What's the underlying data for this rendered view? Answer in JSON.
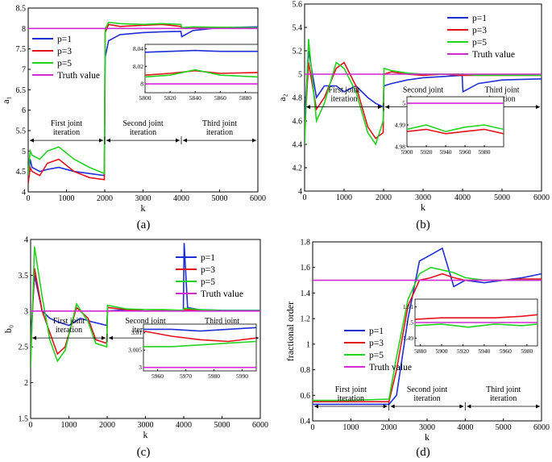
{
  "colors": {
    "p1": "#1f2fd6",
    "p3": "#e3121a",
    "p5": "#20d41f",
    "truth": "#d22ad2",
    "axis": "#000000"
  },
  "chart_data": [
    {
      "type": "line",
      "panel_label": "(a)",
      "xlabel": "k",
      "ylabel": "a₁",
      "xlim": [
        0,
        6000
      ],
      "ylim": [
        4,
        8.5
      ],
      "xticks": [
        "0",
        "1000",
        "2000",
        "3000",
        "4000",
        "5000",
        "6000"
      ],
      "yticks": [
        "4",
        "4.5",
        "5",
        "5.5",
        "6",
        "6.5",
        "7",
        "7.5",
        "8",
        "8.5"
      ],
      "legend": {
        "position": "upper-left",
        "entries": [
          "p=1",
          "p=3",
          "p=5",
          "Truth value"
        ]
      },
      "truth": 8,
      "series": [
        {
          "name": "p=1",
          "x": [
            0,
            50,
            100,
            300,
            500,
            800,
            1200,
            1600,
            1990,
            2010,
            2100,
            2400,
            3000,
            3500,
            3990,
            4010,
            4300,
            5000,
            6000
          ],
          "y": [
            4.3,
            4.8,
            4.6,
            4.5,
            4.55,
            4.6,
            4.5,
            4.45,
            4.4,
            7.3,
            7.7,
            7.85,
            7.9,
            7.92,
            7.93,
            7.8,
            7.95,
            8.02,
            8.04
          ]
        },
        {
          "name": "p=3",
          "x": [
            0,
            50,
            100,
            300,
            500,
            800,
            1200,
            1600,
            1990,
            2010,
            2100,
            2400,
            3000,
            3500,
            3990,
            4010,
            4300,
            5000,
            6000
          ],
          "y": [
            4.2,
            4.6,
            4.5,
            4.4,
            4.7,
            4.8,
            4.5,
            4.35,
            4.3,
            7.9,
            8.1,
            8.05,
            8.08,
            8.1,
            8.05,
            8.0,
            8.03,
            8.02,
            8.02
          ]
        },
        {
          "name": "p=5",
          "x": [
            0,
            50,
            100,
            300,
            500,
            800,
            1200,
            1600,
            1990,
            2010,
            2100,
            2400,
            3000,
            3500,
            3990,
            4010,
            4300,
            5000,
            6000
          ],
          "y": [
            4.4,
            5.0,
            4.9,
            4.8,
            5.0,
            5.1,
            4.8,
            4.6,
            4.45,
            8.0,
            8.15,
            8.12,
            8.1,
            8.12,
            8.1,
            8.02,
            8.04,
            8.03,
            8.02
          ]
        }
      ],
      "phases": [
        {
          "label": "First joint iteration",
          "range": [
            0,
            2000
          ]
        },
        {
          "label": "Second joint iteration",
          "range": [
            2000,
            4000
          ]
        },
        {
          "label": "Third joint iteration",
          "range": [
            4000,
            6000
          ]
        }
      ],
      "inset": {
        "xlim": [
          5800,
          5890
        ],
        "ylim": [
          7.99,
          8.045
        ],
        "xticks": [
          "5800",
          "5820",
          "5840",
          "5860",
          "5880"
        ],
        "yticks": [
          "8",
          "8.02",
          "8.04"
        ],
        "series": [
          {
            "name": "p=1",
            "x": [
              5800,
              5820,
              5840,
              5860,
              5890
            ],
            "y": [
              8.036,
              8.037,
              8.038,
              8.037,
              8.037
            ]
          },
          {
            "name": "p=3",
            "x": [
              5800,
              5820,
              5840,
              5860,
              5890
            ],
            "y": [
              8.01,
              8.012,
              8.015,
              8.012,
              8.013
            ]
          },
          {
            "name": "p=5",
            "x": [
              5800,
              5820,
              5840,
              5860,
              5890
            ],
            "y": [
              8.008,
              8.01,
              8.016,
              8.01,
              8.008
            ]
          }
        ],
        "truth": 8
      }
    },
    {
      "type": "line",
      "panel_label": "(b)",
      "xlabel": "k",
      "ylabel": "a₂",
      "xlim": [
        0,
        6000
      ],
      "ylim": [
        4,
        5.6
      ],
      "xticks": [
        "0",
        "1000",
        "2000",
        "3000",
        "4000",
        "5000",
        "6000"
      ],
      "yticks": [
        "4",
        "4.2",
        "4.4",
        "4.6",
        "4.8",
        "5",
        "5.2",
        "5.4",
        "5.6"
      ],
      "legend": {
        "position": "upper-right",
        "entries": [
          "p=1",
          "p=3",
          "p=5",
          "Truth value"
        ]
      },
      "truth": 5,
      "series": [
        {
          "name": "p=1",
          "x": [
            0,
            100,
            300,
            500,
            800,
            1000,
            1300,
            1600,
            1800,
            1990,
            2010,
            2200,
            2600,
            3000,
            3500,
            3990,
            4010,
            4400,
            5000,
            6000
          ],
          "y": [
            4.6,
            5.2,
            4.8,
            4.9,
            4.9,
            4.85,
            4.9,
            4.8,
            4.75,
            4.72,
            4.9,
            4.92,
            4.95,
            4.97,
            4.98,
            4.99,
            4.85,
            4.92,
            4.95,
            4.96
          ]
        },
        {
          "name": "p=3",
          "x": [
            0,
            100,
            300,
            500,
            800,
            1000,
            1300,
            1600,
            1800,
            1990,
            2010,
            2200,
            2600,
            3000,
            3500,
            3990,
            4010,
            4400,
            5000,
            6000
          ],
          "y": [
            4.5,
            5.1,
            4.7,
            4.8,
            5.05,
            5.1,
            4.9,
            4.55,
            4.45,
            4.5,
            5.0,
            5.02,
            5.0,
            4.99,
            5.0,
            4.99,
            4.99,
            4.99,
            4.99,
            4.99
          ]
        },
        {
          "name": "p=5",
          "x": [
            0,
            100,
            300,
            500,
            800,
            1000,
            1300,
            1600,
            1800,
            1990,
            2010,
            2200,
            2600,
            3000,
            3500,
            3990,
            4010,
            4400,
            5000,
            6000
          ],
          "y": [
            4.4,
            5.3,
            4.6,
            4.75,
            5.1,
            5.05,
            4.85,
            4.5,
            4.4,
            4.6,
            5.05,
            5.03,
            5.01,
            5.0,
            5.0,
            5.0,
            5.0,
            4.99,
            4.99,
            4.99
          ]
        }
      ],
      "phases": [
        {
          "label": "First joint iteration",
          "range": [
            0,
            2000
          ]
        },
        {
          "label": "Second joint iteration",
          "range": [
            2000,
            4000
          ]
        },
        {
          "label": "Third joint iteration",
          "range": [
            4000,
            6000
          ]
        }
      ],
      "inset": {
        "xlim": [
          5900,
          6000
        ],
        "ylim": [
          4.98,
          5.003
        ],
        "xticks": [
          "5900",
          "5920",
          "5940",
          "5960",
          "5980"
        ],
        "yticks": [
          "4.98",
          "4.99",
          "5"
        ],
        "series": [
          {
            "name": "p=3",
            "x": [
              5900,
              5920,
              5940,
              5960,
              5980,
              6000
            ],
            "y": [
              4.987,
              4.988,
              4.986,
              4.987,
              4.988,
              4.986
            ]
          },
          {
            "name": "p=5",
            "x": [
              5900,
              5920,
              5940,
              5960,
              5980,
              6000
            ],
            "y": [
              4.988,
              4.99,
              4.987,
              4.989,
              4.99,
              4.988
            ]
          }
        ],
        "truth": 5
      }
    },
    {
      "type": "line",
      "panel_label": "(c)",
      "xlabel": "k",
      "ylabel": "b₀",
      "xlim": [
        0,
        6000
      ],
      "ylim": [
        1.5,
        4
      ],
      "xticks": [
        "0",
        "1000",
        "2000",
        "3000",
        "4000",
        "5000",
        "6000"
      ],
      "yticks": [
        "1.5",
        "2",
        "2.5",
        "3",
        "3.5",
        "4"
      ],
      "legend": {
        "position": "upper-right",
        "entries": [
          "p=1",
          "p=3",
          "p=5",
          "Truth value"
        ]
      },
      "truth": 3,
      "series": [
        {
          "name": "p=1",
          "x": [
            0,
            100,
            300,
            500,
            700,
            1000,
            1300,
            1600,
            1990,
            2010,
            2500,
            3000,
            3500,
            3990,
            4010,
            4100,
            4400,
            5000,
            6000
          ],
          "y": [
            2.6,
            3.5,
            3.0,
            2.9,
            2.85,
            2.8,
            2.9,
            2.85,
            2.8,
            3.0,
            3.02,
            3.0,
            3.01,
            3.0,
            3.95,
            3.05,
            3.02,
            3.01,
            3.01
          ]
        },
        {
          "name": "p=3",
          "x": [
            0,
            100,
            300,
            500,
            700,
            900,
            1200,
            1500,
            1700,
            1990,
            2010,
            2500,
            3000,
            3500,
            3990,
            4010,
            4400,
            5000,
            6000
          ],
          "y": [
            2.4,
            3.6,
            3.0,
            2.7,
            2.4,
            2.5,
            3.05,
            2.9,
            2.6,
            2.55,
            3.05,
            3.02,
            3.0,
            3.01,
            3.0,
            3.02,
            3.01,
            3.005,
            3.005
          ]
        },
        {
          "name": "p=5",
          "x": [
            0,
            100,
            300,
            500,
            700,
            900,
            1200,
            1500,
            1700,
            1990,
            2010,
            2500,
            3000,
            3500,
            3990,
            4010,
            4400,
            5000,
            6000
          ],
          "y": [
            2.2,
            3.9,
            3.2,
            2.6,
            2.3,
            2.45,
            3.1,
            2.85,
            2.55,
            2.5,
            3.08,
            3.03,
            3.02,
            3.02,
            3.01,
            3.04,
            3.02,
            3.006,
            3.006
          ]
        }
      ],
      "phases": [
        {
          "label": "First joint iteration",
          "range": [
            0,
            2000
          ]
        },
        {
          "label": "Second joint iteration",
          "range": [
            2000,
            4000
          ]
        },
        {
          "label": "Third joint iteration",
          "range": [
            4000,
            6000
          ]
        }
      ],
      "inset": {
        "xlim": [
          5955,
          5995
        ],
        "ylim": [
          2.999,
          3.0125
        ],
        "xticks": [
          "5960",
          "5970",
          "5980",
          "5990"
        ],
        "yticks": [
          "3",
          "3.005",
          "3.01"
        ],
        "series": [
          {
            "name": "p=1",
            "x": [
              5955,
              5965,
              5975,
              5985,
              5995
            ],
            "y": [
              3.011,
              3.011,
              3.0105,
              3.011,
              3.0115
            ]
          },
          {
            "name": "p=3",
            "x": [
              5955,
              5965,
              5975,
              5985,
              5995
            ],
            "y": [
              3.0105,
              3.009,
              3.008,
              3.0075,
              3.0085
            ]
          },
          {
            "name": "p=5",
            "x": [
              5955,
              5965,
              5975,
              5985,
              5995
            ],
            "y": [
              3.006,
              3.006,
              3.0065,
              3.007,
              3.0075
            ]
          }
        ],
        "truth": 3
      }
    },
    {
      "type": "line",
      "panel_label": "(d)",
      "xlabel": "k",
      "ylabel": "fractional order",
      "xlim": [
        0,
        6000
      ],
      "ylim": [
        0.4,
        1.8
      ],
      "xticks": [
        "0",
        "1000",
        "2000",
        "3000",
        "4000",
        "5000",
        "6000"
      ],
      "yticks": [
        "0.4",
        "0.6",
        "0.8",
        "1",
        "1.2",
        "1.4",
        "1.6",
        "1.8"
      ],
      "legend": {
        "position": "center-left",
        "entries": [
          "p=1",
          "p=3",
          "p=5",
          "Truth value"
        ]
      },
      "truth": 1.5,
      "series": [
        {
          "name": "p=1",
          "x": [
            0,
            1000,
            2000,
            2200,
            2500,
            2800,
            3100,
            3400,
            3700,
            4000,
            4500,
            5000,
            5500,
            6000
          ],
          "y": [
            0.53,
            0.53,
            0.53,
            0.6,
            1.2,
            1.65,
            1.7,
            1.75,
            1.45,
            1.5,
            1.48,
            1.5,
            1.52,
            1.55
          ]
        },
        {
          "name": "p=3",
          "x": [
            0,
            1000,
            2000,
            2200,
            2500,
            2800,
            3100,
            3400,
            3700,
            4000,
            4500,
            5000,
            5500,
            6000
          ],
          "y": [
            0.55,
            0.55,
            0.55,
            0.8,
            1.3,
            1.5,
            1.52,
            1.55,
            1.52,
            1.5,
            1.5,
            1.5,
            1.51,
            1.51
          ]
        },
        {
          "name": "p=5",
          "x": [
            0,
            1000,
            2000,
            2200,
            2500,
            2800,
            3100,
            3400,
            3700,
            4000,
            4500,
            5000,
            5500,
            6000
          ],
          "y": [
            0.56,
            0.56,
            0.57,
            0.9,
            1.35,
            1.55,
            1.6,
            1.58,
            1.56,
            1.52,
            1.5,
            1.5,
            1.5,
            1.5
          ]
        }
      ],
      "phases": [
        {
          "label": "First joint iteration",
          "range": [
            0,
            2000
          ]
        },
        {
          "label": "Second joint iteration",
          "range": [
            2000,
            4000
          ]
        },
        {
          "label": "Third joint iteration",
          "range": [
            4000,
            6000
          ]
        }
      ],
      "inset": {
        "xlim": [
          5875,
          5990
        ],
        "ylim": [
          1.485,
          1.515
        ],
        "xticks": [
          "5880",
          "5900",
          "5920",
          "5940",
          "5960",
          "5980"
        ],
        "yticks": [
          "1.49",
          "1.5",
          "1.51"
        ],
        "series": [
          {
            "name": "p=3",
            "x": [
              5875,
              5900,
              5925,
              5950,
              5975,
              5990
            ],
            "y": [
              1.502,
              1.503,
              1.503,
              1.503,
              1.504,
              1.505
            ]
          },
          {
            "name": "p=5",
            "x": [
              5875,
              5900,
              5925,
              5950,
              5975,
              5990
            ],
            "y": [
              1.498,
              1.499,
              1.497,
              1.499,
              1.498,
              1.499
            ]
          }
        ],
        "truth": 1.5
      }
    }
  ]
}
